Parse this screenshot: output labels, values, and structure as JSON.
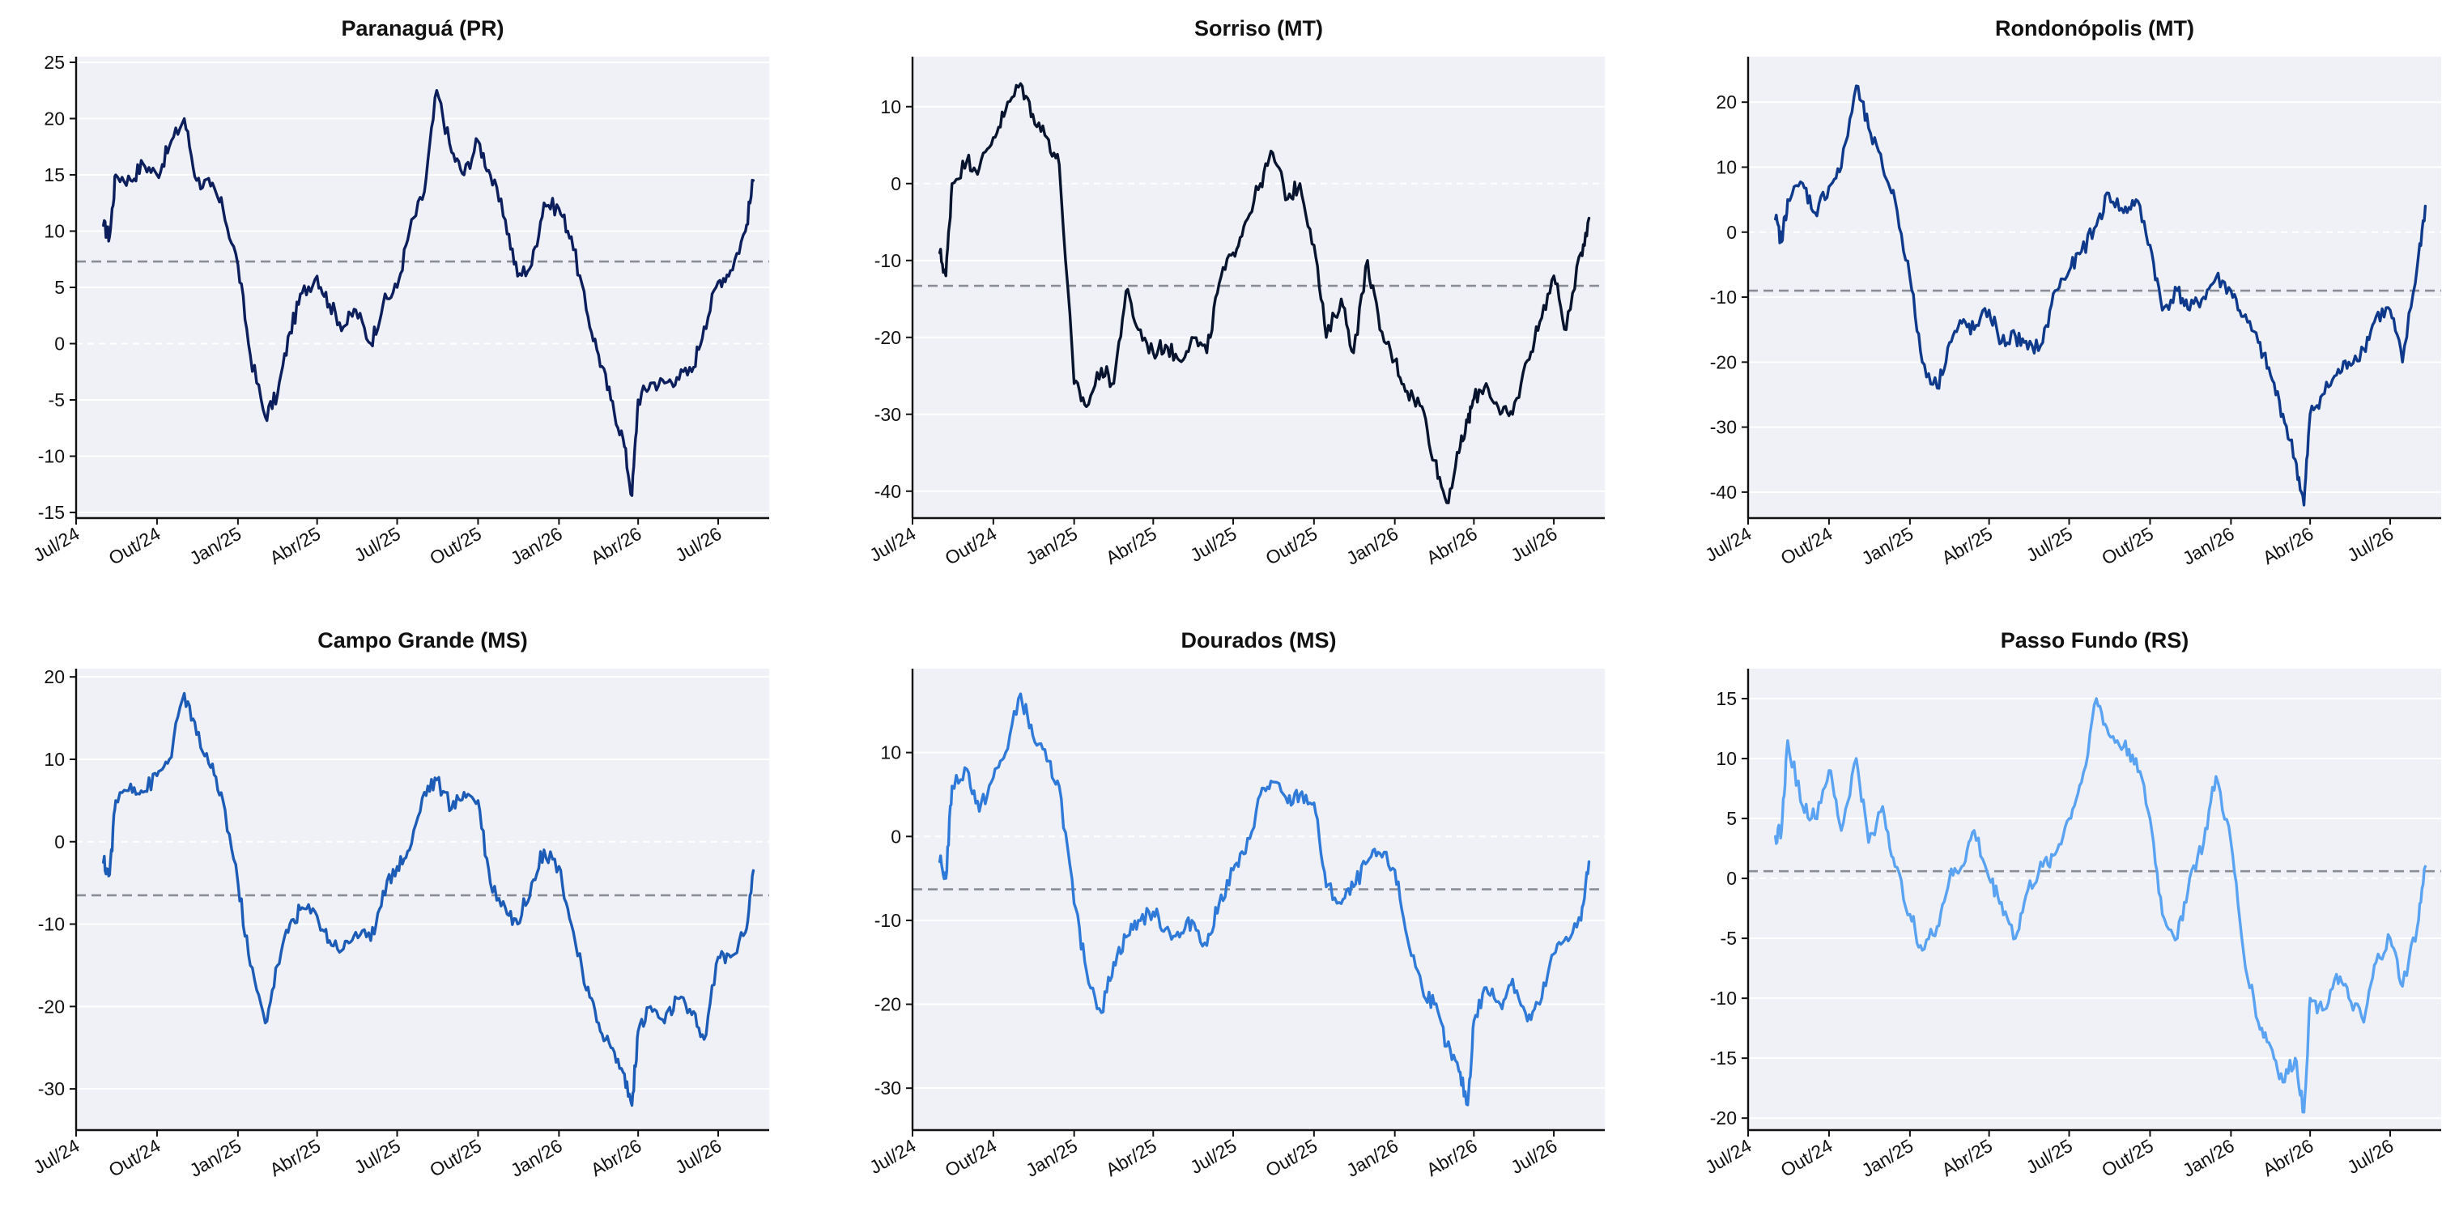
{
  "chart_data": [
    {
      "type": "line",
      "title": "Paranaguá (PR)",
      "color": "#0c1f5c",
      "ylim": [
        -15.5,
        25.5
      ],
      "yticks": [
        -15,
        -10,
        -5,
        0,
        5,
        10,
        15,
        20,
        25
      ],
      "reference_line": 7.3,
      "x_tick_labels": [
        "Jul/24",
        "Out/24",
        "Jan/25",
        "Abr/25",
        "Jul/25",
        "Out/25",
        "Jan/26",
        "Abr/26",
        "Jul/26"
      ],
      "x": [
        "2024-08-01",
        "2024-08-08",
        "2024-08-15",
        "2024-09-01",
        "2024-09-15",
        "2024-10-01",
        "2024-10-15",
        "2024-11-01",
        "2024-11-15",
        "2024-12-01",
        "2024-12-15",
        "2025-01-01",
        "2025-01-15",
        "2025-02-01",
        "2025-02-15",
        "2025-03-01",
        "2025-03-15",
        "2025-04-01",
        "2025-04-15",
        "2025-05-01",
        "2025-05-15",
        "2025-06-01",
        "2025-06-15",
        "2025-07-01",
        "2025-07-15",
        "2025-08-01",
        "2025-08-15",
        "2025-09-01",
        "2025-09-15",
        "2025-10-01",
        "2025-10-15",
        "2025-11-01",
        "2025-11-15",
        "2025-12-01",
        "2025-12-15",
        "2026-01-01",
        "2026-01-15",
        "2026-02-01",
        "2026-02-15",
        "2026-03-01",
        "2026-03-15",
        "2026-03-25",
        "2026-04-01",
        "2026-04-15",
        "2026-05-01",
        "2026-05-15",
        "2026-06-01",
        "2026-06-15",
        "2026-07-01",
        "2026-07-15",
        "2026-08-01",
        "2026-08-10"
      ],
      "values": [
        10.5,
        9.5,
        15.0,
        14.5,
        16.0,
        15.0,
        17.5,
        20.0,
        14.5,
        14.0,
        12.0,
        7.0,
        -1.0,
        -6.5,
        -4.5,
        1.0,
        4.5,
        6.0,
        3.5,
        1.5,
        3.0,
        0.0,
        3.5,
        5.0,
        10.0,
        13.5,
        22.5,
        17.0,
        15.0,
        18.0,
        15.0,
        11.0,
        6.0,
        7.0,
        12.5,
        12.0,
        9.5,
        3.0,
        -1.0,
        -5.0,
        -8.5,
        -13.5,
        -5.0,
        -3.5,
        -3.5,
        -3.0,
        -2.5,
        1.5,
        5.5,
        6.5,
        10.0,
        14.5
      ]
    },
    {
      "type": "line",
      "title": "Sorriso (MT)",
      "color": "#08142e",
      "ylim": [
        -43.5,
        16.5
      ],
      "yticks": [
        -40,
        -30,
        -20,
        -10,
        0,
        10
      ],
      "reference_line": -13.3,
      "x_tick_labels": [
        "Jul/24",
        "Out/24",
        "Jan/25",
        "Abr/25",
        "Jul/25",
        "Out/25",
        "Jan/26",
        "Abr/26",
        "Jul/26"
      ],
      "x": [
        "2024-08-01",
        "2024-08-08",
        "2024-08-15",
        "2024-09-01",
        "2024-09-15",
        "2024-10-01",
        "2024-10-15",
        "2024-11-01",
        "2024-11-15",
        "2024-12-01",
        "2024-12-15",
        "2025-01-01",
        "2025-01-15",
        "2025-02-01",
        "2025-02-15",
        "2025-03-01",
        "2025-03-15",
        "2025-04-01",
        "2025-04-15",
        "2025-05-01",
        "2025-05-15",
        "2025-06-01",
        "2025-06-15",
        "2025-07-01",
        "2025-07-15",
        "2025-08-01",
        "2025-08-15",
        "2025-09-01",
        "2025-09-15",
        "2025-10-01",
        "2025-10-15",
        "2025-11-01",
        "2025-11-15",
        "2025-12-01",
        "2025-12-15",
        "2026-01-01",
        "2026-01-15",
        "2026-02-01",
        "2026-02-15",
        "2026-03-01",
        "2026-03-15",
        "2026-03-25",
        "2026-04-01",
        "2026-04-15",
        "2026-05-01",
        "2026-05-15",
        "2026-06-01",
        "2026-06-15",
        "2026-07-01",
        "2026-07-15",
        "2026-08-01",
        "2026-08-10"
      ],
      "values": [
        -9.0,
        -12.0,
        0.0,
        3.0,
        2.0,
        6.0,
        9.5,
        13.0,
        9.0,
        6.0,
        2.5,
        -26.0,
        -29.0,
        -24.0,
        -26.0,
        -14.0,
        -19.0,
        -22.0,
        -21.0,
        -23.0,
        -20.0,
        -22.0,
        -13.0,
        -9.0,
        -5.0,
        0.0,
        4.0,
        -2.0,
        0.0,
        -8.0,
        -20.0,
        -15.0,
        -22.0,
        -10.0,
        -19.0,
        -23.0,
        -27.0,
        -29.0,
        -36.0,
        -41.5,
        -35.0,
        -31.0,
        -28.0,
        -26.0,
        -30.0,
        -30.0,
        -23.0,
        -18.0,
        -12.0,
        -19.0,
        -9.0,
        -4.5
      ]
    },
    {
      "type": "line",
      "title": "Rondonópolis (MT)",
      "color": "#0f3a8c",
      "ylim": [
        -44.0,
        27.0
      ],
      "yticks": [
        -40,
        -30,
        -20,
        -10,
        0,
        10,
        20
      ],
      "reference_line": -9.0,
      "x_tick_labels": [
        "Jul/24",
        "Out/24",
        "Jan/25",
        "Abr/25",
        "Jul/25",
        "Out/25",
        "Jan/26",
        "Abr/26",
        "Jul/26"
      ],
      "x": [
        "2024-08-01",
        "2024-08-08",
        "2024-08-15",
        "2024-09-01",
        "2024-09-15",
        "2024-10-01",
        "2024-10-15",
        "2024-11-01",
        "2024-11-15",
        "2024-12-01",
        "2024-12-15",
        "2025-01-01",
        "2025-01-15",
        "2025-02-01",
        "2025-02-15",
        "2025-03-01",
        "2025-03-15",
        "2025-04-01",
        "2025-04-15",
        "2025-05-01",
        "2025-05-15",
        "2025-06-01",
        "2025-06-15",
        "2025-07-01",
        "2025-07-15",
        "2025-08-01",
        "2025-08-15",
        "2025-09-01",
        "2025-09-15",
        "2025-10-01",
        "2025-10-15",
        "2025-11-01",
        "2025-11-15",
        "2025-12-01",
        "2025-12-15",
        "2026-01-01",
        "2026-01-15",
        "2026-02-01",
        "2026-02-15",
        "2026-03-01",
        "2026-03-15",
        "2026-03-25",
        "2026-04-01",
        "2026-04-15",
        "2026-05-01",
        "2026-05-15",
        "2026-06-01",
        "2026-06-15",
        "2026-07-01",
        "2026-07-15",
        "2026-08-01",
        "2026-08-10"
      ],
      "values": [
        2.0,
        -1.5,
        5.0,
        7.5,
        3.0,
        7.0,
        10.0,
        22.5,
        16.0,
        10.0,
        5.0,
        -7.0,
        -20.0,
        -24.0,
        -17.0,
        -14.0,
        -15.0,
        -12.0,
        -17.0,
        -16.0,
        -18.0,
        -17.0,
        -9.0,
        -6.0,
        -3.0,
        1.0,
        6.0,
        3.0,
        5.0,
        -2.0,
        -12.0,
        -9.0,
        -12.0,
        -10.0,
        -7.0,
        -9.0,
        -13.0,
        -17.0,
        -22.0,
        -28.0,
        -35.0,
        -42.0,
        -28.0,
        -25.0,
        -22.0,
        -20.0,
        -18.0,
        -13.0,
        -12.0,
        -20.0,
        -5.0,
        4.0
      ]
    },
    {
      "type": "line",
      "title": "Campo Grande (MS)",
      "color": "#1d5cb6",
      "ylim": [
        -35.0,
        21.0
      ],
      "yticks": [
        -30,
        -20,
        -10,
        0,
        10,
        20
      ],
      "reference_line": -6.5,
      "x_tick_labels": [
        "Jul/24",
        "Out/24",
        "Jan/25",
        "Abr/25",
        "Jul/25",
        "Out/25",
        "Jan/26",
        "Abr/26",
        "Jul/26"
      ],
      "x": [
        "2024-08-01",
        "2024-08-08",
        "2024-08-15",
        "2024-09-01",
        "2024-09-15",
        "2024-10-01",
        "2024-10-15",
        "2024-11-01",
        "2024-11-15",
        "2024-12-01",
        "2024-12-15",
        "2025-01-01",
        "2025-01-15",
        "2025-02-01",
        "2025-02-15",
        "2025-03-01",
        "2025-03-15",
        "2025-04-01",
        "2025-04-15",
        "2025-05-01",
        "2025-05-15",
        "2025-06-01",
        "2025-06-15",
        "2025-07-01",
        "2025-07-15",
        "2025-08-01",
        "2025-08-15",
        "2025-09-01",
        "2025-09-15",
        "2025-10-01",
        "2025-10-15",
        "2025-11-01",
        "2025-11-15",
        "2025-12-01",
        "2025-12-15",
        "2026-01-01",
        "2026-01-15",
        "2026-02-01",
        "2026-02-15",
        "2026-03-01",
        "2026-03-15",
        "2026-03-25",
        "2026-04-01",
        "2026-04-15",
        "2026-05-01",
        "2026-05-15",
        "2026-06-01",
        "2026-06-15",
        "2026-07-01",
        "2026-07-15",
        "2026-08-01",
        "2026-08-10"
      ],
      "values": [
        -2.5,
        -4.0,
        5.0,
        7.0,
        6.0,
        8.0,
        10.0,
        18.0,
        13.0,
        9.0,
        5.0,
        -5.0,
        -15.0,
        -22.0,
        -15.0,
        -10.0,
        -8.0,
        -9.0,
        -12.0,
        -13.0,
        -11.0,
        -12.0,
        -6.0,
        -3.0,
        -1.0,
        6.0,
        7.5,
        4.0,
        6.0,
        5.0,
        -5.0,
        -8.0,
        -10.0,
        -5.0,
        -1.0,
        -3.0,
        -10.0,
        -18.0,
        -22.0,
        -25.0,
        -28.0,
        -32.0,
        -23.0,
        -20.0,
        -22.0,
        -19.0,
        -21.0,
        -24.0,
        -14.0,
        -14.0,
        -11.0,
        -3.5
      ]
    },
    {
      "type": "line",
      "title": "Dourados (MS)",
      "color": "#2f7ad8",
      "ylim": [
        -35.0,
        20.0
      ],
      "yticks": [
        -30,
        -20,
        -10,
        0,
        10
      ],
      "reference_line": -6.3,
      "x_tick_labels": [
        "Jul/24",
        "Out/24",
        "Jan/25",
        "Abr/25",
        "Jul/25",
        "Out/25",
        "Jan/26",
        "Abr/26",
        "Jul/26"
      ],
      "x": [
        "2024-08-01",
        "2024-08-08",
        "2024-08-15",
        "2024-09-01",
        "2024-09-15",
        "2024-10-01",
        "2024-10-15",
        "2024-11-01",
        "2024-11-15",
        "2024-12-01",
        "2024-12-15",
        "2025-01-01",
        "2025-01-15",
        "2025-02-01",
        "2025-02-15",
        "2025-03-01",
        "2025-03-15",
        "2025-04-01",
        "2025-04-15",
        "2025-05-01",
        "2025-05-15",
        "2025-06-01",
        "2025-06-15",
        "2025-07-01",
        "2025-07-15",
        "2025-08-01",
        "2025-08-15",
        "2025-09-01",
        "2025-09-15",
        "2025-10-01",
        "2025-10-15",
        "2025-11-01",
        "2025-11-15",
        "2025-12-01",
        "2025-12-15",
        "2026-01-01",
        "2026-01-15",
        "2026-02-01",
        "2026-02-15",
        "2026-03-01",
        "2026-03-15",
        "2026-03-25",
        "2026-04-01",
        "2026-04-15",
        "2026-05-01",
        "2026-05-15",
        "2026-06-01",
        "2026-06-15",
        "2026-07-01",
        "2026-07-15",
        "2026-08-01",
        "2026-08-10"
      ],
      "values": [
        -3.0,
        -5.0,
        6.0,
        8.0,
        3.0,
        7.0,
        10.0,
        17.0,
        12.0,
        9.0,
        6.0,
        -8.0,
        -16.0,
        -21.0,
        -15.0,
        -12.0,
        -10.0,
        -9.0,
        -11.0,
        -12.0,
        -10.0,
        -13.0,
        -8.0,
        -4.0,
        -2.0,
        5.0,
        6.5,
        4.0,
        5.0,
        4.0,
        -6.0,
        -8.0,
        -6.0,
        -3.0,
        -2.0,
        -4.0,
        -12.0,
        -18.0,
        -20.0,
        -25.0,
        -28.0,
        -32.0,
        -22.0,
        -18.0,
        -20.0,
        -17.0,
        -22.0,
        -20.0,
        -14.0,
        -12.0,
        -10.0,
        -3.0
      ]
    },
    {
      "type": "line",
      "title": "Passo Fundo (RS)",
      "color": "#5aa2f2",
      "ylim": [
        -21.0,
        17.5
      ],
      "yticks": [
        -20,
        -15,
        -10,
        -5,
        0,
        5,
        10,
        15
      ],
      "reference_line": 0.6,
      "x_tick_labels": [
        "Jul/24",
        "Out/24",
        "Jan/25",
        "Abr/25",
        "Jul/25",
        "Out/25",
        "Jan/26",
        "Abr/26",
        "Jul/26"
      ],
      "x": [
        "2024-08-01",
        "2024-08-08",
        "2024-08-15",
        "2024-09-01",
        "2024-09-15",
        "2024-10-01",
        "2024-10-15",
        "2024-11-01",
        "2024-11-15",
        "2024-12-01",
        "2024-12-15",
        "2025-01-01",
        "2025-01-15",
        "2025-02-01",
        "2025-02-15",
        "2025-03-01",
        "2025-03-15",
        "2025-04-01",
        "2025-04-15",
        "2025-05-01",
        "2025-05-15",
        "2025-06-01",
        "2025-06-15",
        "2025-07-01",
        "2025-07-15",
        "2025-08-01",
        "2025-08-15",
        "2025-09-01",
        "2025-09-15",
        "2025-10-01",
        "2025-10-15",
        "2025-11-01",
        "2025-11-15",
        "2025-12-01",
        "2025-12-15",
        "2026-01-01",
        "2026-01-15",
        "2026-02-01",
        "2026-02-15",
        "2026-03-01",
        "2026-03-15",
        "2026-03-25",
        "2026-04-01",
        "2026-04-15",
        "2026-05-01",
        "2026-05-15",
        "2026-06-01",
        "2026-06-15",
        "2026-07-01",
        "2026-07-15",
        "2026-08-01",
        "2026-08-10"
      ],
      "values": [
        3.5,
        4.0,
        11.5,
        6.0,
        5.0,
        9.0,
        4.0,
        10.0,
        3.0,
        6.0,
        1.0,
        -3.0,
        -6.0,
        -4.0,
        0.0,
        1.0,
        4.0,
        0.0,
        -2.0,
        -5.0,
        -1.0,
        1.0,
        2.0,
        5.0,
        8.0,
        15.0,
        12.0,
        11.0,
        10.0,
        5.0,
        -3.0,
        -5.0,
        0.0,
        3.0,
        8.5,
        3.0,
        -6.0,
        -12.0,
        -14.0,
        -17.0,
        -15.0,
        -19.5,
        -10.0,
        -11.0,
        -8.0,
        -10.0,
        -12.0,
        -7.0,
        -5.0,
        -9.0,
        -4.0,
        1.0
      ]
    }
  ]
}
